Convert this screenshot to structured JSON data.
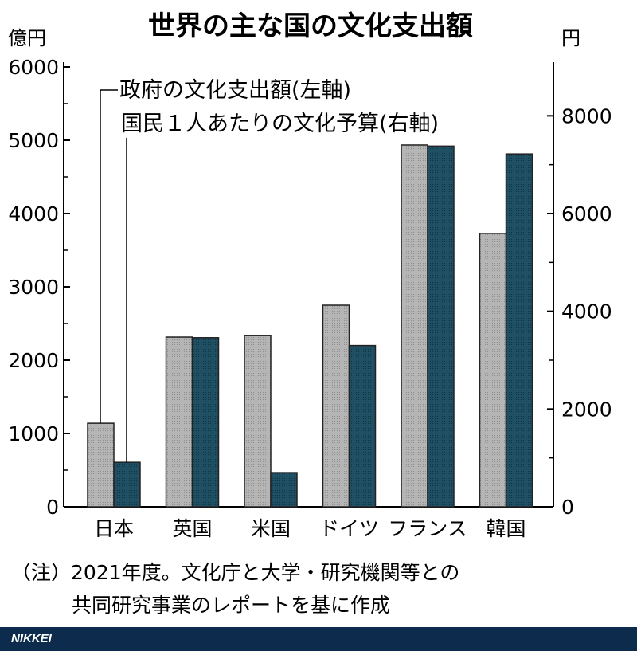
{
  "chart_data": {
    "type": "bar",
    "title": "世界の主な国の文化支出額",
    "left_unit": "億円",
    "right_unit": "円",
    "categories": [
      "日本",
      "英国",
      "米国",
      "ドイツ",
      "フランス",
      "韓国"
    ],
    "series": [
      {
        "name": "政府の文化支出額(左軸)",
        "axis": "left",
        "color": "#b5b5b5",
        "values": [
          1140,
          2315,
          2335,
          2750,
          4935,
          3730
        ]
      },
      {
        "name": "国民１人あたりの文化予算(右軸)",
        "axis": "right",
        "color": "#1f4f63",
        "values": [
          910,
          3460,
          700,
          3300,
          7380,
          7220
        ]
      }
    ],
    "left_axis": {
      "ylim": [
        0,
        6000
      ],
      "ticks": [
        0,
        1000,
        2000,
        3000,
        4000,
        5000,
        6000
      ]
    },
    "right_axis": {
      "ylim": [
        0,
        9000
      ],
      "ticks": [
        0,
        2000,
        4000,
        6000,
        8000
      ]
    },
    "grid": false,
    "note_lines": [
      "（注）2021年度。文化庁と大学・研究機関等との",
      "共同研究事業のレポートを基に作成"
    ]
  },
  "footer": {
    "brand": "NIKKEI"
  }
}
